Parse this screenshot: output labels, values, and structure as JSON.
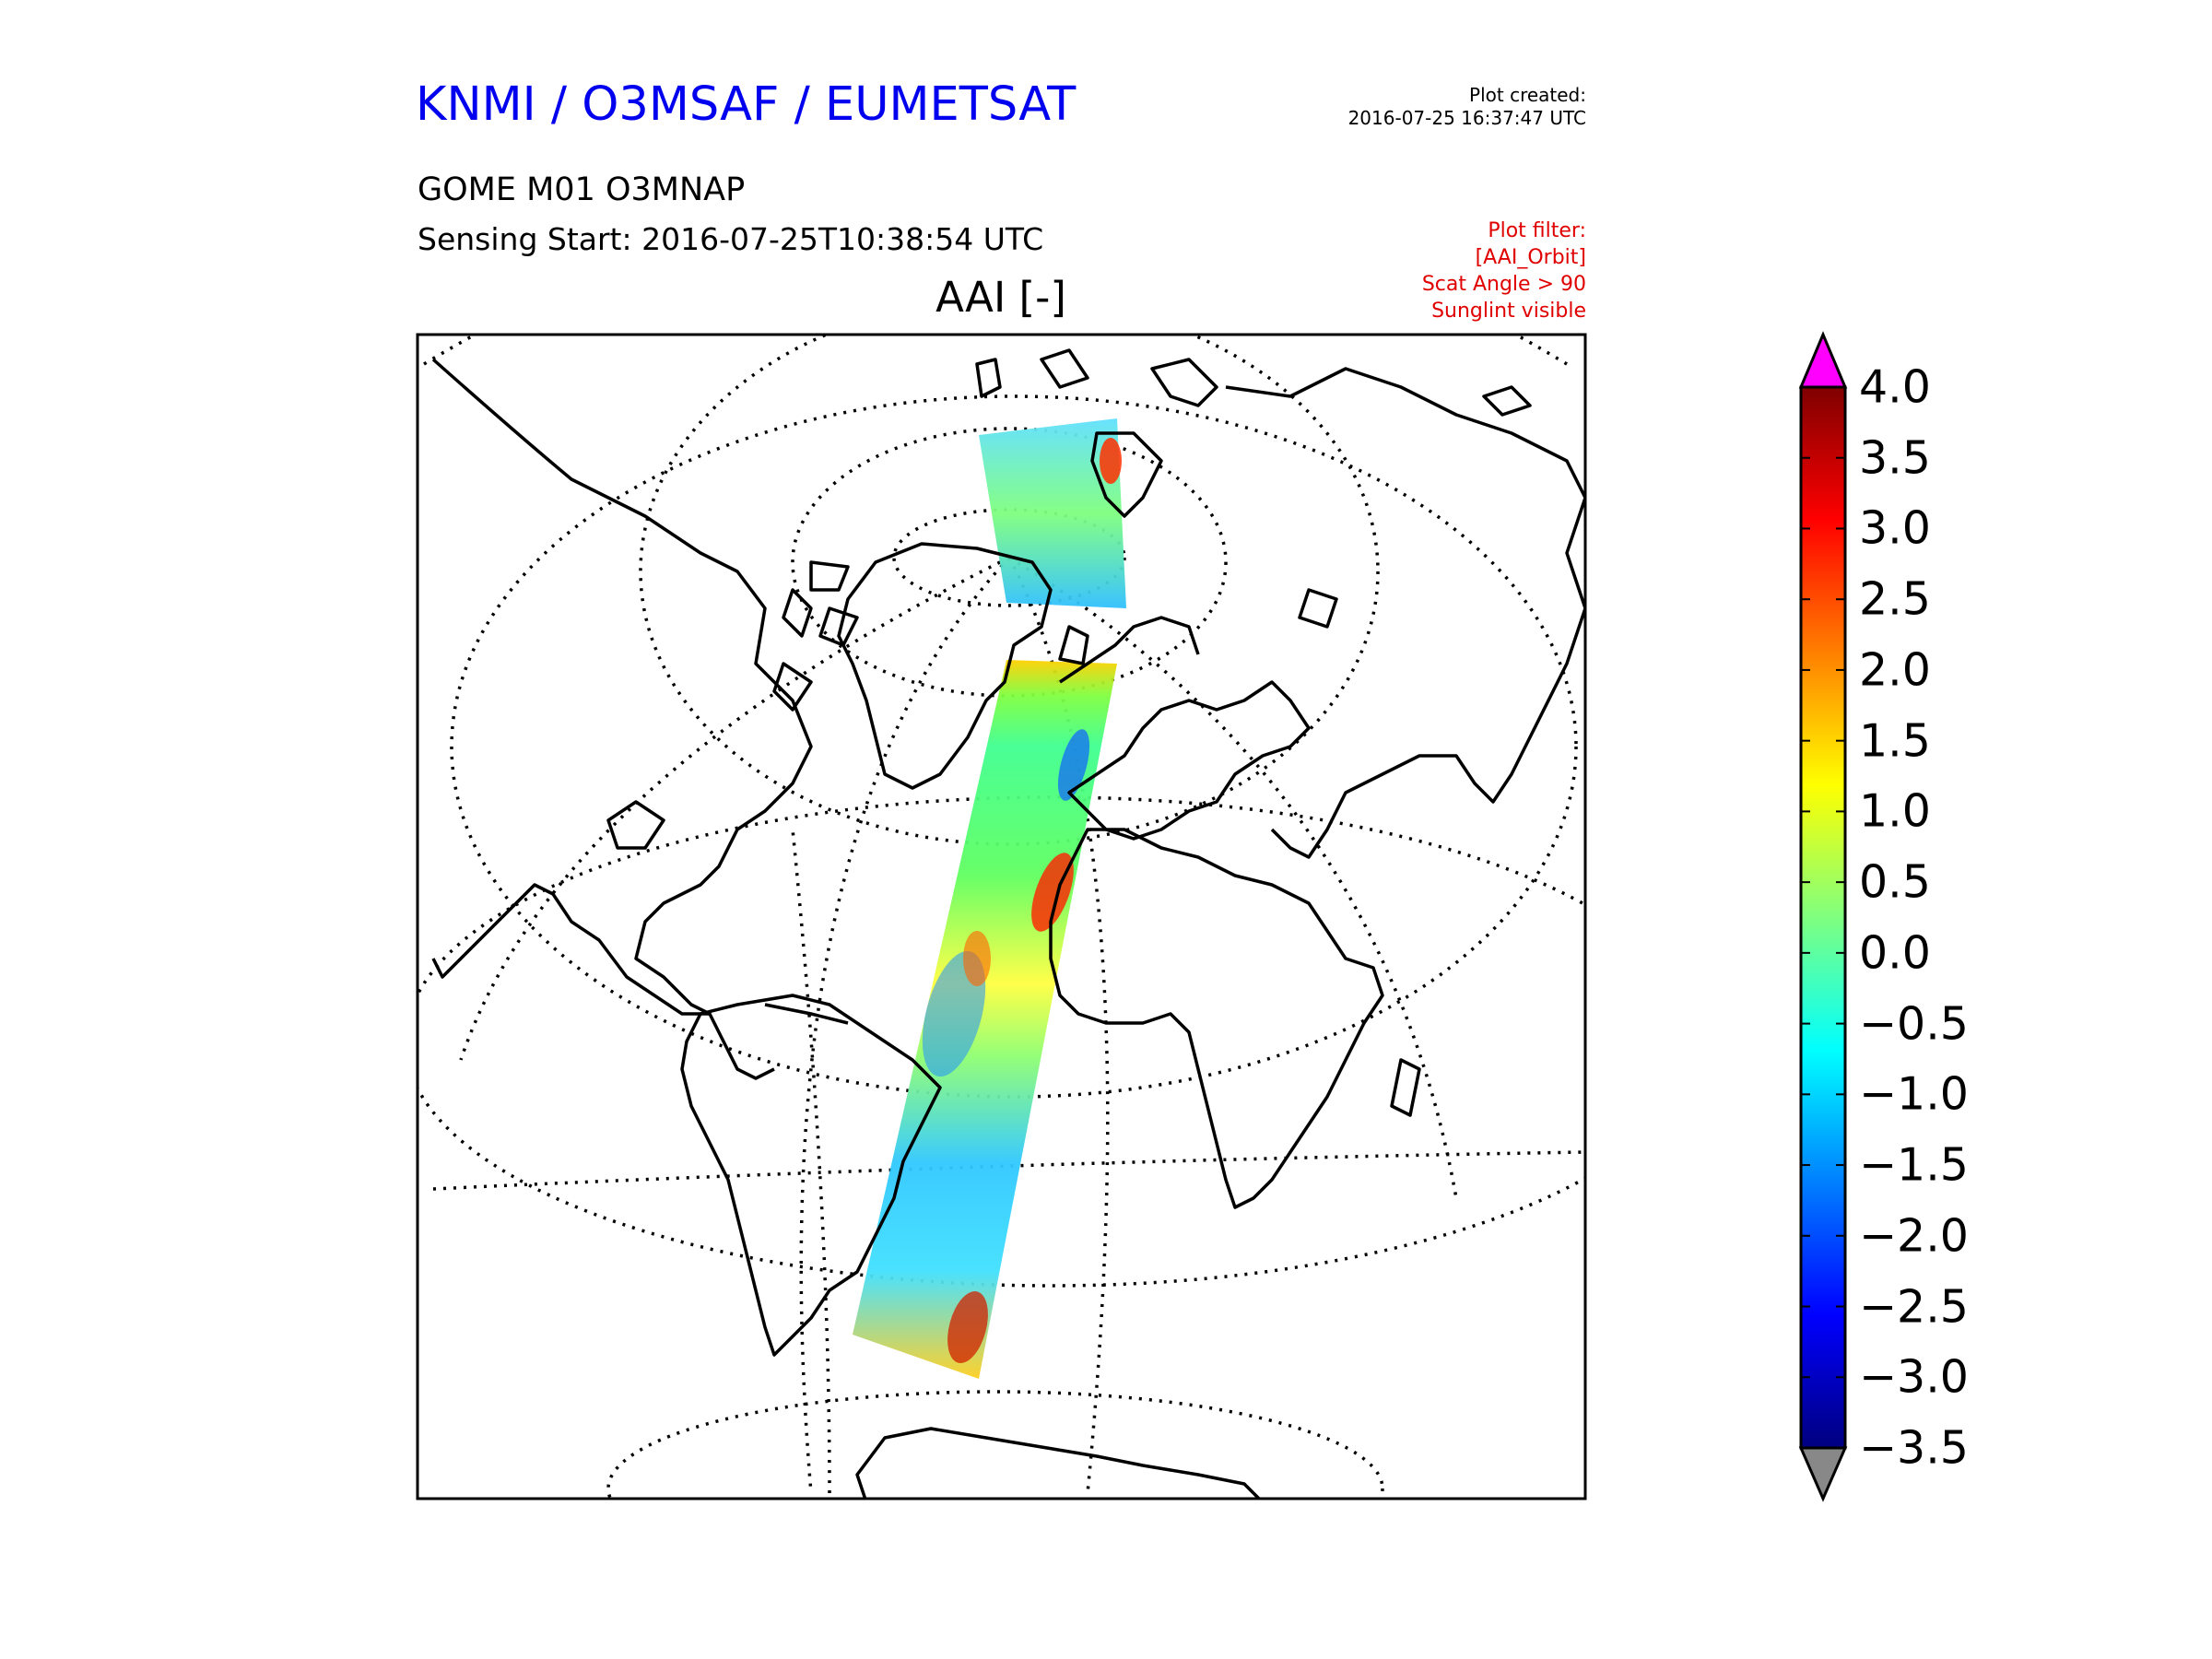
{
  "header": {
    "organization": "KNMI / O3MSAF / EUMETSAT",
    "plot_created_label": "Plot created:",
    "plot_created_time": "2016-07-25 16:37:47 UTC",
    "product": "GOME M01 O3MNAP",
    "sensing_start": "Sensing Start: 2016-07-25T10:38:54 UTC",
    "filter_lines": [
      "Plot filter:",
      "[AAI_Orbit]",
      "Scat Angle > 90",
      "Sunglint visible"
    ]
  },
  "map": {
    "title": "AAI [-]",
    "projection": "orthographic",
    "graticule": "dotted",
    "coastline_color": "#000000"
  },
  "colorbar": {
    "min": -3.5,
    "max": 4.0,
    "extend": "both",
    "over_color": "#ff00ff",
    "under_color": "#888888",
    "colormap": [
      "#00007f",
      "#0000ff",
      "#007fff",
      "#00ffff",
      "#7fff7f",
      "#ffff00",
      "#ff7f00",
      "#ff0000",
      "#7f0000"
    ],
    "ticks": [
      "4.0",
      "3.5",
      "3.0",
      "2.5",
      "2.0",
      "1.5",
      "1.0",
      "0.5",
      "0.0",
      "−0.5",
      "−1.0",
      "−1.5",
      "−2.0",
      "−2.5",
      "−3.0",
      "−3.5"
    ],
    "tick_values": [
      4.0,
      3.5,
      3.0,
      2.5,
      2.0,
      1.5,
      1.0,
      0.5,
      0.0,
      -0.5,
      -1.0,
      -1.5,
      -2.0,
      -2.5,
      -3.0,
      -3.5
    ]
  }
}
